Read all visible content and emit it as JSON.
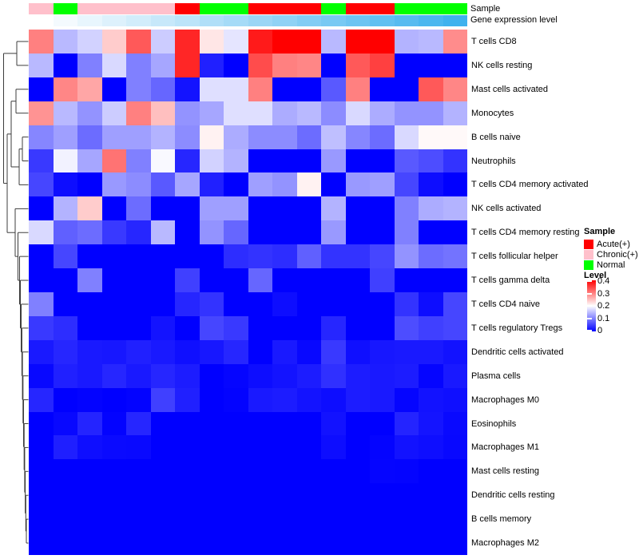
{
  "annotations": {
    "sample_label": "Sample",
    "gene_label": "Gene expression level",
    "sample_groups": [
      "Chronic(+)",
      "Normal",
      "Chronic(+)",
      "Chronic(+)",
      "Chronic(+)",
      "Chronic(+)",
      "Acute(+)",
      "Normal",
      "Normal",
      "Acute(+)",
      "Acute(+)",
      "Acute(+)",
      "Normal",
      "Acute(+)",
      "Acute(+)",
      "Normal",
      "Normal",
      "Normal"
    ],
    "group_colors": {
      "Acute(+)": "#ff0000",
      "Chronic(+)": "#ffc0cb",
      "Normal": "#00ff00"
    },
    "gene_gradient_start": "#ffffff",
    "gene_gradient_end": "#40b2ee",
    "gene_values_norm": [
      0,
      0.059,
      0.118,
      0.176,
      0.235,
      0.294,
      0.353,
      0.412,
      0.471,
      0.529,
      0.588,
      0.647,
      0.706,
      0.765,
      0.824,
      0.882,
      0.941,
      1
    ]
  },
  "legend": {
    "sample_title": "Sample",
    "sample_items": [
      {
        "label": "Acute(+)",
        "color": "#ff0000"
      },
      {
        "label": "Chronic(+)",
        "color": "#ffc0cb"
      },
      {
        "label": "Normal",
        "color": "#00ff00"
      }
    ],
    "level_title": "Level",
    "level_ticks": [
      "0.4",
      "0.3",
      "0.2",
      "0.1",
      "0"
    ],
    "level_colors_top_to_bottom": [
      "#ff0000",
      "#ffffff",
      "#0000ff"
    ]
  },
  "chart_data": {
    "type": "heatmap",
    "title": "",
    "xlabel": "",
    "ylabel": "",
    "n_columns": 18,
    "column_labels_shown": false,
    "vmin": 0,
    "vmax": 0.4,
    "colormap": "blue-white-red (0=blue, 0.2=white, 0.4=red)",
    "legend_position": "right",
    "rows": [
      "T cells CD8",
      "NK cells resting",
      "Mast cells activated",
      "Monocytes",
      "B cells naive",
      "Neutrophils",
      "T cells CD4 memory activated",
      "NK cells activated",
      "T cells CD4 memory resting",
      "T cells follicular helper",
      "T cells gamma delta",
      "T cells CD4 naive",
      "T cells regulatory  Tregs",
      "Dendritic cells activated",
      "Plasma cells",
      "Macrophages M0",
      "Eosinophils",
      "Macrophages M1",
      "Mast cells resting",
      "Dendritic cells resting",
      "B cells memory",
      "Macrophages M2"
    ],
    "column_annotation_sample": [
      "Chronic(+)",
      "Normal",
      "Chronic(+)",
      "Chronic(+)",
      "Chronic(+)",
      "Chronic(+)",
      "Acute(+)",
      "Normal",
      "Normal",
      "Acute(+)",
      "Acute(+)",
      "Acute(+)",
      "Normal",
      "Acute(+)",
      "Acute(+)",
      "Normal",
      "Normal",
      "Normal"
    ],
    "values": [
      [
        0.3,
        0.145,
        0.165,
        0.24,
        0.33,
        0.16,
        0.37,
        0.22,
        0.18,
        0.38,
        0.4,
        0.4,
        0.145,
        0.4,
        0.4,
        0.14,
        0.145,
        0.29
      ],
      [
        0.145,
        0.0,
        0.1,
        0.17,
        0.1,
        0.13,
        0.37,
        0.025,
        0.0,
        0.34,
        0.3,
        0.295,
        0.0,
        0.33,
        0.35,
        0.0,
        0.0,
        0.0
      ],
      [
        0.0,
        0.295,
        0.27,
        0.0,
        0.1,
        0.08,
        0.015,
        0.175,
        0.175,
        0.3,
        0.0,
        0.0,
        0.07,
        0.3,
        0.0,
        0.0,
        0.33,
        0.295
      ],
      [
        0.285,
        0.145,
        0.115,
        0.16,
        0.3,
        0.25,
        0.115,
        0.13,
        0.175,
        0.175,
        0.135,
        0.145,
        0.11,
        0.17,
        0.135,
        0.115,
        0.115,
        0.14
      ],
      [
        0.105,
        0.125,
        0.085,
        0.125,
        0.125,
        0.14,
        0.11,
        0.21,
        0.135,
        0.11,
        0.11,
        0.085,
        0.15,
        0.105,
        0.085,
        0.17,
        0.205,
        0.205
      ],
      [
        0.045,
        0.19,
        0.13,
        0.31,
        0.1,
        0.195,
        0.03,
        0.165,
        0.14,
        0.0,
        0.0,
        0.0,
        0.12,
        0.0,
        0.0,
        0.07,
        0.06,
        0.04
      ],
      [
        0.055,
        0.01,
        0.0,
        0.12,
        0.11,
        0.07,
        0.13,
        0.025,
        0.0,
        0.125,
        0.115,
        0.21,
        0.0,
        0.12,
        0.125,
        0.055,
        0.01,
        0.0
      ],
      [
        0.0,
        0.14,
        0.24,
        0.0,
        0.085,
        0.0,
        0.0,
        0.125,
        0.125,
        0.0,
        0.0,
        0.0,
        0.14,
        0.0,
        0.0,
        0.1,
        0.135,
        0.14
      ],
      [
        0.17,
        0.075,
        0.085,
        0.045,
        0.03,
        0.145,
        0.0,
        0.115,
        0.08,
        0.0,
        0.0,
        0.0,
        0.12,
        0.0,
        0.0,
        0.1,
        0.0,
        0.0
      ],
      [
        0.0,
        0.055,
        0.0,
        0.0,
        0.0,
        0.0,
        0.0,
        0.0,
        0.035,
        0.04,
        0.035,
        0.075,
        0.04,
        0.04,
        0.055,
        0.115,
        0.085,
        0.09
      ],
      [
        0.0,
        0.0,
        0.1,
        0.0,
        0.0,
        0.0,
        0.05,
        0.0,
        0.0,
        0.08,
        0.0,
        0.0,
        0.0,
        0.0,
        0.05,
        0.0,
        0.0,
        0.0
      ],
      [
        0.1,
        0.0,
        0.0,
        0.0,
        0.0,
        0.0,
        0.03,
        0.04,
        0.0,
        0.0,
        0.01,
        0.0,
        0.0,
        0.0,
        0.0,
        0.04,
        0.01,
        0.055
      ],
      [
        0.045,
        0.035,
        0.0,
        0.0,
        0.0,
        0.015,
        0.0,
        0.055,
        0.045,
        0.0,
        0.0,
        0.0,
        0.03,
        0.0,
        0.0,
        0.06,
        0.05,
        0.055
      ],
      [
        0.02,
        0.03,
        0.02,
        0.018,
        0.025,
        0.02,
        0.012,
        0.018,
        0.03,
        0.0,
        0.02,
        0.006,
        0.045,
        0.012,
        0.018,
        0.02,
        0.02,
        0.014
      ],
      [
        0.006,
        0.025,
        0.02,
        0.03,
        0.02,
        0.03,
        0.022,
        0.0,
        0.004,
        0.01,
        0.015,
        0.022,
        0.038,
        0.022,
        0.02,
        0.022,
        0.004,
        0.02
      ],
      [
        0.03,
        0.0,
        0.002,
        0.0,
        0.002,
        0.05,
        0.025,
        0.0,
        0.002,
        0.02,
        0.022,
        0.015,
        0.01,
        0.022,
        0.02,
        0.004,
        0.014,
        0.012
      ],
      [
        0.0,
        0.006,
        0.028,
        0.002,
        0.03,
        0.0,
        0.0,
        0.0,
        0.0,
        0.0,
        0.0,
        0.0,
        0.014,
        0.0,
        0.0,
        0.028,
        0.016,
        0.007
      ],
      [
        0.0,
        0.024,
        0.011,
        0.008,
        0.007,
        0.0,
        0.0,
        0.0,
        0.0,
        0.0,
        0.0,
        0.0,
        0.01,
        0.0,
        0.003,
        0.014,
        0.011,
        0.006
      ],
      [
        0.0,
        0.0,
        0.0,
        0.0,
        0.0,
        0.0,
        0.0,
        0.0,
        0.0,
        0.0,
        0.0,
        0.0,
        0.0,
        0.0,
        0.004,
        0.003,
        0.0,
        0.0
      ],
      [
        0.0,
        0.0,
        0.0,
        0.0,
        0.0,
        0.0,
        0.0,
        0.0,
        0.0,
        0.0,
        0.0,
        0.0,
        0.0,
        0.0,
        0.0,
        0.0,
        0.0,
        0.0
      ],
      [
        0.0,
        0.0,
        0.0,
        0.0,
        0.0,
        0.0,
        0.0,
        0.0,
        0.0,
        0.0,
        0.0,
        0.0,
        0.0,
        0.0,
        0.0,
        0.0,
        0.0,
        0.0
      ],
      [
        0.0,
        0.0,
        0.0,
        0.0,
        0.0,
        0.0,
        0.0,
        0.0,
        0.0,
        0.0,
        0.0,
        0.0,
        0.0,
        0.0,
        0.0,
        0.0,
        0.0,
        0.0
      ]
    ]
  }
}
